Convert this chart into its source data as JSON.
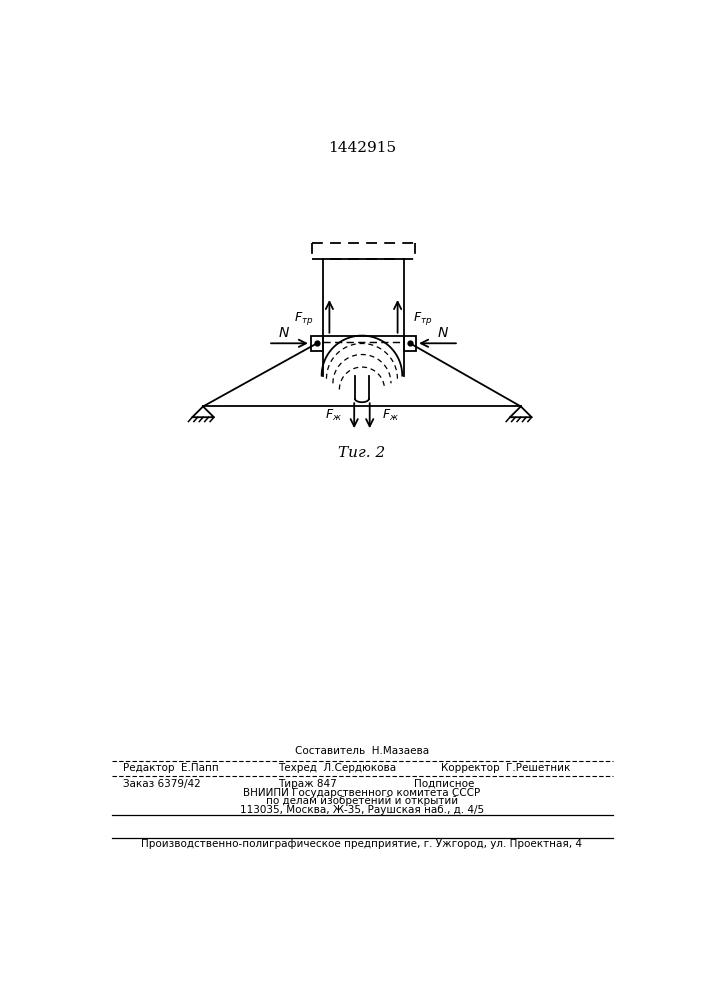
{
  "title_number": "1442915",
  "fig_label": "Τиг. 2",
  "background_color": "#ffffff",
  "line_color": "#000000",
  "footer_line1": "Составитель  Н.Мазаева",
  "footer_line2_left": "Редактор  Е.Папп",
  "footer_line2_mid": "Техред  Л.Сердюкова",
  "footer_line2_right": "Корректор  Г.Решетник",
  "footer_line3_left": "Заказ 6379/42",
  "footer_line3_mid": "Тираж 847",
  "footer_line3_right": "Подписное",
  "footer_line4": "ВНИИПИ Государственного комитета СССР",
  "footer_line5": "по делам изобретений и открытий",
  "footer_line6": "113035, Москва, Ж-35, Раушская наб., д. 4/5",
  "footer_line7": "Производственно-полиграфическое предприятие, г. Ужгород, ул. Проектная, 4"
}
